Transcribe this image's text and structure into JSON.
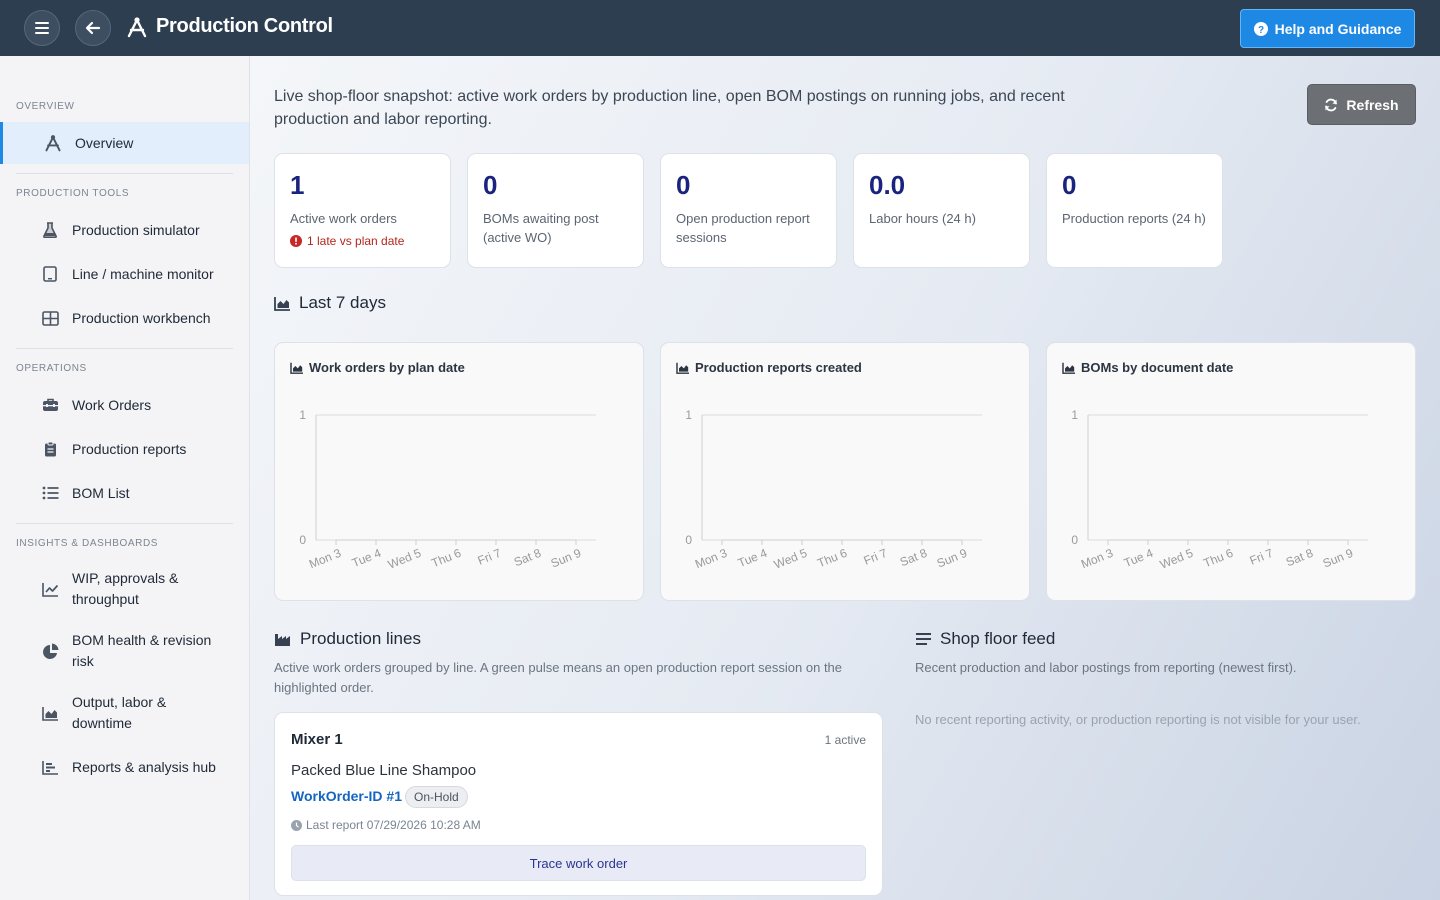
{
  "header": {
    "title": "Production Control",
    "help_label": "Help and Guidance"
  },
  "sidebar": {
    "sections": [
      {
        "label": "OVERVIEW",
        "items": [
          {
            "label": "Overview",
            "icon": "compass-drafting-icon",
            "active": true
          }
        ]
      },
      {
        "label": "PRODUCTION TOOLS",
        "items": [
          {
            "label": "Production simulator",
            "icon": "flask-icon"
          },
          {
            "label": "Line / machine monitor",
            "icon": "tablet-icon"
          },
          {
            "label": "Production workbench",
            "icon": "grid-icon"
          }
        ]
      },
      {
        "label": "OPERATIONS",
        "items": [
          {
            "label": "Work Orders",
            "icon": "toolbox-icon"
          },
          {
            "label": "Production reports",
            "icon": "clipboard-icon"
          },
          {
            "label": "BOM List",
            "icon": "list-icon"
          }
        ]
      },
      {
        "label": "INSIGHTS & DASHBOARDS",
        "items": [
          {
            "label": "WIP, approvals & throughput",
            "icon": "line-chart-icon"
          },
          {
            "label": "BOM health & revision risk",
            "icon": "pie-chart-icon"
          },
          {
            "label": "Output, labor & downtime",
            "icon": "area-chart-icon"
          },
          {
            "label": "Reports & analysis hub",
            "icon": "bar-chart-icon"
          }
        ]
      }
    ]
  },
  "main": {
    "intro": "Live shop-floor snapshot: active work orders by production line, open BOM postings on running jobs, and recent production and labor reporting.",
    "refresh_label": "Refresh",
    "kpis": [
      {
        "value": "1",
        "caption": "Active work orders",
        "warning": "1 late vs plan date"
      },
      {
        "value": "0",
        "caption": "BOMs awaiting post (active WO)"
      },
      {
        "value": "0",
        "caption": "Open production report sessions"
      },
      {
        "value": "0.0",
        "caption": "Labor hours (24 h)"
      },
      {
        "value": "0",
        "caption": "Production reports (24 h)"
      }
    ],
    "last7_title": "Last 7 days",
    "production_lines": {
      "title": "Production lines",
      "subtitle": "Active work orders grouped by line. A green pulse means an open production report session on the highlighted order.",
      "lines": [
        {
          "name": "Mixer 1",
          "active": "1 active",
          "product": "Packed Blue Line Shampoo",
          "work_order": "WorkOrder-ID #1",
          "status": "On-Hold",
          "last_report": "Last report 07/29/2026 10:28 AM",
          "trace_label": "Trace work order"
        }
      ]
    },
    "feed": {
      "title": "Shop floor feed",
      "subtitle": "Recent production and labor postings from reporting (newest first).",
      "empty": "No recent reporting activity, or production reporting is not visible for your user."
    }
  },
  "chart_data": [
    {
      "type": "line",
      "title": "Work orders by plan date",
      "categories": [
        "Mon 3",
        "Tue 4",
        "Wed 5",
        "Thu 6",
        "Fri 7",
        "Sat 8",
        "Sun 9"
      ],
      "values": [
        0,
        0,
        0,
        0,
        0,
        0,
        0
      ],
      "ylim": [
        0,
        1
      ],
      "yticks": [
        "0",
        "1"
      ]
    },
    {
      "type": "line",
      "title": "Production reports created",
      "categories": [
        "Mon 3",
        "Tue 4",
        "Wed 5",
        "Thu 6",
        "Fri 7",
        "Sat 8",
        "Sun 9"
      ],
      "values": [
        0,
        0,
        0,
        0,
        0,
        0,
        0
      ],
      "ylim": [
        0,
        1
      ],
      "yticks": [
        "0",
        "1"
      ]
    },
    {
      "type": "line",
      "title": "BOMs by document date",
      "categories": [
        "Mon 3",
        "Tue 4",
        "Wed 5",
        "Thu 6",
        "Fri 7",
        "Sat 8",
        "Sun 9"
      ],
      "values": [
        0,
        0,
        0,
        0,
        0,
        0,
        0
      ],
      "ylim": [
        0,
        1
      ],
      "yticks": [
        "0",
        "1"
      ]
    }
  ]
}
